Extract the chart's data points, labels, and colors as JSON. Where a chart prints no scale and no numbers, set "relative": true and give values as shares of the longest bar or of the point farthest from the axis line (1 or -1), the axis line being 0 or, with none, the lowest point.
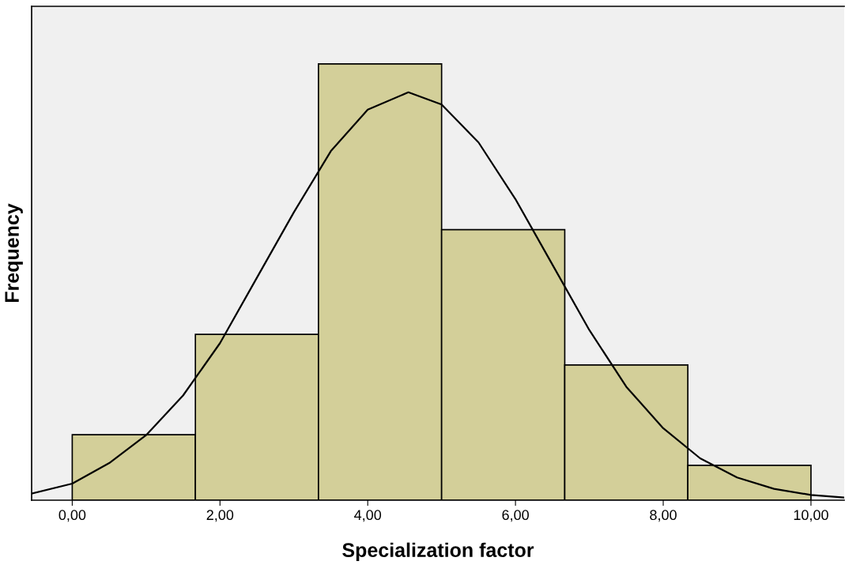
{
  "chart_data": {
    "type": "histogram",
    "xlabel": "Specialization factor",
    "ylabel": "Frequency",
    "relative": true,
    "bins": [
      0,
      1.667,
      3.333,
      5,
      6.667,
      8.333,
      10
    ],
    "values": [
      0.15,
      0.38,
      1,
      0.62,
      0.31,
      0.08
    ],
    "color": "#d3cf99",
    "series": [
      {
        "type": "line",
        "color": "#000000",
        "x": [
          -0.55,
          0,
          0.5,
          1,
          1.5,
          2,
          2.5,
          3,
          3.5,
          4,
          4.55,
          5,
          5.5,
          6,
          6.5,
          7,
          7.5,
          8,
          8.5,
          9,
          9.5,
          10,
          10.45
        ],
        "values": [
          0.015,
          0.038,
          0.085,
          0.149,
          0.24,
          0.36,
          0.51,
          0.66,
          0.8,
          0.895,
          0.935,
          0.907,
          0.82,
          0.69,
          0.54,
          0.39,
          0.26,
          0.165,
          0.096,
          0.052,
          0.026,
          0.012,
          0.006
        ]
      }
    ],
    "xlim": [
      -0.55,
      10.45
    ],
    "xticks": [
      {
        "value": 0,
        "label": "0,00"
      },
      {
        "value": 2,
        "label": "2,00"
      },
      {
        "value": 4,
        "label": "4,00"
      },
      {
        "value": 6,
        "label": "6,00"
      },
      {
        "value": 8,
        "label": "8,00"
      },
      {
        "value": 10,
        "label": "10,00"
      }
    ],
    "grid": false,
    "legend": false
  }
}
